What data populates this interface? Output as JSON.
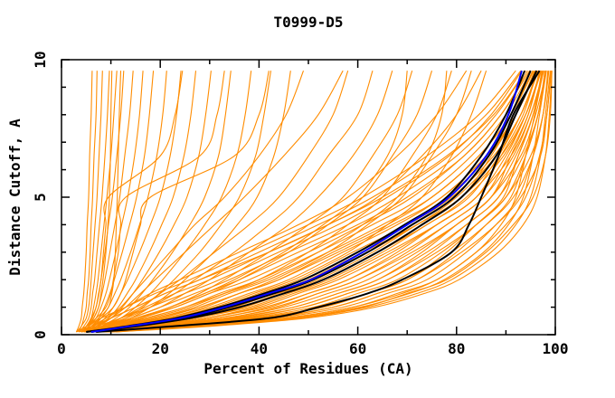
{
  "figure": {
    "kind": "line-plot",
    "background": "#ffffff"
  },
  "colors": {
    "model_orange": "#ff8c00",
    "reference_black": "#000000",
    "reference_blue": "#0000ff",
    "frame": "#000000",
    "text": "#000000"
  },
  "chart_data": {
    "type": "line",
    "title": "T0999-D5",
    "xlabel": "Percent of Residues (CA)",
    "ylabel": "Distance Cutoff, A",
    "xlim": [
      0,
      100
    ],
    "ylim": [
      0,
      10
    ],
    "grid": false,
    "legend": "none",
    "x_major_ticks": [
      0,
      20,
      40,
      60,
      80,
      100
    ],
    "x_minor_ticks": [
      10,
      30,
      50,
      70,
      90
    ],
    "y_major_ticks": [
      0,
      5,
      10
    ],
    "y_minor_ticks": [
      1,
      2,
      3,
      4,
      6,
      7,
      8,
      9
    ],
    "x_tick_labels": [
      "0",
      "20",
      "40",
      "60",
      "80",
      "100"
    ],
    "y_tick_labels": [
      "0",
      "5",
      "10"
    ],
    "y_levels": [
      0.1,
      0.3,
      0.6,
      1,
      1.5,
      2,
      3,
      4,
      5,
      6.5,
      8,
      9.6
    ],
    "series_groups": [
      {
        "name": "model-curves-orange",
        "color": "#ff8c00",
        "stroke_width": 1.1,
        "curves": [
          [
            3,
            6,
            10,
            15,
            21,
            28,
            40,
            52,
            63,
            76,
            86,
            93
          ],
          [
            4,
            8,
            12,
            17,
            23,
            30,
            42,
            54,
            65,
            78,
            87.5,
            94
          ],
          [
            3,
            5,
            8,
            13,
            19,
            26,
            38,
            50,
            61,
            74,
            84.5,
            92
          ],
          [
            4,
            8,
            14,
            20,
            27,
            34,
            46,
            58,
            68,
            80,
            88,
            94
          ],
          [
            5,
            10,
            16,
            22,
            29,
            36,
            48,
            60,
            70,
            81.5,
            89,
            94.8
          ],
          [
            3.5,
            7,
            12,
            18,
            25,
            32,
            44,
            56,
            66,
            78.5,
            87,
            93.2
          ],
          [
            4,
            10,
            17,
            25,
            32,
            40,
            52,
            63,
            73,
            83,
            90,
            95
          ],
          [
            5,
            12,
            19,
            27,
            34,
            42,
            54,
            65,
            75,
            84.5,
            91,
            95.6
          ],
          [
            4,
            9,
            15,
            23,
            30,
            38,
            50,
            61,
            71,
            81.5,
            89,
            94.4
          ],
          [
            6,
            13,
            21,
            29,
            36,
            44,
            56,
            67,
            77,
            86,
            92,
            96.2
          ],
          [
            5,
            12,
            21,
            30,
            38,
            46,
            57,
            68,
            77,
            86,
            92,
            96
          ],
          [
            5.5,
            13,
            23,
            32,
            40,
            48,
            59,
            70,
            79,
            87.5,
            93,
            96.6
          ],
          [
            4.5,
            11,
            19,
            28,
            36,
            44,
            55,
            66,
            75,
            84.5,
            91,
            95.4
          ],
          [
            6,
            14,
            25,
            34,
            42,
            50,
            61,
            72,
            81,
            89,
            94,
            97.2
          ],
          [
            5,
            14,
            25,
            35,
            43,
            51,
            62,
            72,
            80,
            88,
            93,
            96.5
          ],
          [
            6,
            15,
            27,
            37,
            45,
            53,
            64,
            74,
            82,
            89.5,
            94,
            97.1
          ],
          [
            4.5,
            13,
            23,
            33,
            41,
            49,
            60,
            70,
            78,
            86.5,
            92,
            95.9
          ],
          [
            7,
            16,
            29,
            39,
            47,
            55,
            66,
            76,
            84,
            91,
            95,
            97.7
          ],
          [
            6,
            16,
            29,
            40,
            48,
            56,
            67,
            76,
            84,
            90,
            94,
            97
          ],
          [
            7,
            17,
            31,
            42,
            50,
            58,
            69,
            78,
            85.5,
            91.5,
            95,
            97.6
          ],
          [
            5,
            15,
            27,
            38,
            46,
            54,
            65,
            74,
            82.5,
            88.5,
            93,
            96.4
          ],
          [
            8,
            18,
            33,
            44,
            52,
            60,
            71,
            80,
            87,
            93,
            96,
            98.2
          ],
          [
            4.5,
            14,
            25,
            36,
            44,
            52,
            63,
            72,
            81,
            87,
            92,
            95.8
          ],
          [
            7,
            19,
            33,
            45,
            54,
            62,
            72,
            80,
            87,
            92,
            95.5,
            97.5
          ],
          [
            8,
            20,
            35,
            47,
            56,
            64,
            74,
            82,
            88.5,
            93.5,
            96.5,
            98.1
          ],
          [
            6,
            18,
            31,
            43,
            52,
            60,
            70,
            78,
            85.5,
            90.5,
            94.5,
            96.9
          ],
          [
            9,
            21,
            37,
            49,
            58,
            66,
            76,
            84,
            90,
            95,
            97.5,
            98.7
          ],
          [
            5.5,
            17,
            29,
            41,
            50,
            58,
            68,
            76,
            84,
            89,
            93.5,
            96.3
          ],
          [
            8,
            22,
            38,
            51,
            60,
            68,
            77,
            84,
            90,
            94,
            96.5,
            98
          ],
          [
            9,
            23,
            40,
            53,
            62,
            70,
            79,
            86,
            91.5,
            95.5,
            97.5,
            98.6
          ],
          [
            7,
            21,
            36,
            49,
            58,
            66,
            75,
            82,
            88.5,
            92.5,
            95.5,
            97.4
          ],
          [
            10,
            24,
            42,
            55,
            64,
            72,
            81,
            88,
            93,
            97,
            98.3,
            99.2
          ],
          [
            6.5,
            20,
            34,
            47,
            56,
            64,
            73,
            80,
            87,
            91,
            94.5,
            96.8
          ],
          [
            9,
            25,
            43,
            57,
            66,
            74,
            82,
            88,
            92.5,
            95.5,
            97.5,
            98.5
          ],
          [
            10,
            26,
            45,
            59,
            68,
            76,
            84,
            90,
            94,
            96.8,
            98.3,
            99.1
          ],
          [
            8,
            24,
            41,
            55,
            64,
            72,
            80,
            86,
            91,
            94,
            96.5,
            97.9
          ],
          [
            11,
            27,
            47,
            61,
            70,
            78,
            86,
            91.5,
            95.5,
            98,
            99,
            99.3
          ],
          [
            7.5,
            23,
            39,
            53,
            62,
            70,
            78,
            84,
            89.5,
            92.5,
            95.5,
            97.3
          ],
          [
            10,
            28,
            48,
            62,
            72,
            79,
            87,
            92,
            95,
            97,
            98,
            99
          ],
          [
            11,
            29.5,
            49.5,
            63.5,
            73.5,
            80.5,
            88.5,
            93.5,
            96.3,
            98,
            98.8,
            99.3
          ],
          [
            9,
            26.5,
            46.5,
            60.5,
            70.5,
            77.5,
            85.5,
            90.5,
            93.5,
            95.5,
            96.8,
            98.2
          ],
          [
            8.5,
            25,
            45,
            59,
            69,
            76,
            84,
            89,
            92,
            94,
            95.8,
            97.6
          ],
          [
            3,
            3.5,
            4,
            4.2,
            4.5,
            4.7,
            5,
            5.2,
            5.5,
            5.7,
            6,
            6.2
          ],
          [
            3,
            4,
            4.5,
            5,
            5.2,
            5.5,
            5.8,
            6,
            6.3,
            6.6,
            7,
            7.2
          ],
          [
            3.5,
            4,
            5,
            5.5,
            5.8,
            6,
            6.4,
            6.8,
            7.2,
            7.6,
            8,
            8.3
          ],
          [
            3.5,
            4.5,
            5.5,
            6,
            6.3,
            6.7,
            7.2,
            7.7,
            8.2,
            8.8,
            9.3,
            9.7
          ],
          [
            4,
            5,
            6,
            6.5,
            7,
            7.4,
            8,
            8.6,
            9.2,
            10,
            10.6,
            11.2
          ],
          [
            4,
            5,
            6.2,
            7,
            7.6,
            8,
            8.8,
            9.5,
            10.3,
            11.2,
            12,
            12.6
          ],
          [
            4,
            5.5,
            6.5,
            7.5,
            8.2,
            8.8,
            9.8,
            10.8,
            11.8,
            12.8,
            13.8,
            14.5
          ],
          [
            4.5,
            5.5,
            7,
            8,
            9,
            9.7,
            11,
            12.2,
            13.4,
            14.8,
            15.8,
            16.5
          ],
          [
            4.5,
            6,
            7.5,
            8.7,
            9.8,
            10.7,
            12.3,
            13.8,
            15.2,
            16.8,
            17.8,
            18.6
          ],
          [
            5,
            6.5,
            8,
            9.5,
            10.8,
            12,
            14,
            15.8,
            17.5,
            19.3,
            20.5,
            21.3
          ],
          [
            5,
            7,
            8.8,
            10.5,
            12,
            13.4,
            15.8,
            18,
            20,
            22,
            23.3,
            24.2
          ],
          [
            5,
            7,
            9.5,
            11.5,
            13.3,
            15,
            17.8,
            20.3,
            22.6,
            24.8,
            26.2,
            27.2
          ],
          [
            5.5,
            7.5,
            10,
            12.3,
            14.5,
            16.4,
            19.8,
            22.8,
            25.4,
            27.8,
            29.2,
            30.3
          ],
          [
            5.5,
            8,
            11,
            13.8,
            16.3,
            18.5,
            22.5,
            26,
            29,
            31.8,
            33.2,
            34.3
          ],
          [
            6,
            8.5,
            12,
            15,
            18,
            20.5,
            25,
            29,
            32.4,
            35.5,
            37.2,
            38.4
          ],
          [
            6,
            9,
            13,
            16.5,
            19.8,
            22.8,
            28,
            32.3,
            36,
            39.3,
            41,
            42.4
          ],
          [
            6,
            9.5,
            14,
            18,
            21.8,
            25,
            30.8,
            35.6,
            39.6,
            43,
            45,
            46.4
          ],
          [
            4,
            5,
            6.5,
            7.5,
            8,
            8.4,
            9,
            9.4,
            9.7,
            9.9,
            10,
            10.2
          ],
          [
            4,
            5.5,
            7.5,
            9.5,
            10.2,
            10.6,
            10.9,
            11.1,
            11.3,
            11.5,
            11.7,
            12
          ],
          [
            4,
            5,
            6,
            7,
            7.5,
            8,
            8.5,
            9,
            9.5,
            20,
            23,
            24.5
          ],
          [
            4,
            5,
            7,
            9,
            10,
            10.5,
            11.5,
            12,
            13,
            28,
            31.5,
            33
          ],
          [
            4,
            6,
            8,
            10.5,
            12,
            13,
            14.5,
            16,
            18,
            35,
            40,
            42
          ],
          [
            5,
            7,
            10,
            13,
            16,
            19,
            25,
            31,
            37,
            45,
            52,
            57
          ],
          [
            4.5,
            6.5,
            9,
            12,
            14.5,
            17,
            22,
            27,
            33,
            40,
            45.5,
            49
          ],
          [
            5,
            8,
            12,
            16,
            20,
            24,
            31,
            38,
            44,
            50,
            55,
            58
          ],
          [
            5,
            8,
            13,
            18,
            23,
            27,
            35,
            42,
            48,
            54,
            60,
            63
          ],
          [
            6,
            9,
            14,
            20,
            25,
            30,
            38,
            46,
            52,
            59,
            64,
            67
          ],
          [
            6,
            10,
            15,
            22,
            28,
            33,
            42,
            50,
            57,
            63,
            68,
            71
          ],
          [
            6,
            10,
            16,
            23,
            30,
            36,
            46,
            54,
            61,
            67,
            72,
            75
          ],
          [
            7,
            11,
            18,
            26,
            33,
            40,
            50,
            58,
            65,
            71,
            76,
            79
          ],
          [
            7,
            12,
            20,
            28,
            36,
            43,
            54,
            62,
            69,
            75,
            80,
            83
          ],
          [
            8,
            13,
            22,
            31,
            39,
            47,
            58,
            66,
            73,
            79,
            83,
            86
          ],
          [
            4,
            6,
            9,
            13,
            18,
            24,
            36,
            48,
            58,
            68,
            76,
            82
          ],
          [
            4,
            7,
            10,
            15,
            21,
            28,
            42,
            54,
            64,
            73,
            80,
            85
          ],
          [
            5,
            9,
            15,
            22,
            29,
            35,
            45,
            53,
            60,
            66,
            69,
            70
          ],
          [
            6,
            11,
            17,
            25,
            33,
            41,
            52,
            61,
            68,
            74,
            77,
            78
          ]
        ]
      },
      {
        "name": "reference-curves-black",
        "color": "#000000",
        "stroke_width": 2,
        "curves": [
          [
            7,
            22,
            42,
            52,
            62,
            69,
            79,
            82.5,
            85,
            88.5,
            91.5,
            96.8
          ],
          [
            5,
            13,
            23,
            32,
            41,
            49,
            60,
            69.5,
            78,
            85,
            90,
            93.8
          ],
          [
            5,
            14,
            25,
            34,
            43,
            51,
            62,
            71,
            79.5,
            86.5,
            91,
            95
          ],
          [
            6,
            15,
            26,
            36,
            45,
            53,
            64,
            73,
            81,
            88,
            92,
            96.2
          ]
        ]
      },
      {
        "name": "reference-curve-blue",
        "color": "#0000ff",
        "stroke_width": 2,
        "curves": [
          [
            6,
            13.5,
            24,
            33,
            42,
            50.5,
            61,
            70,
            78.5,
            86,
            90.5,
            93.2
          ]
        ]
      }
    ]
  }
}
